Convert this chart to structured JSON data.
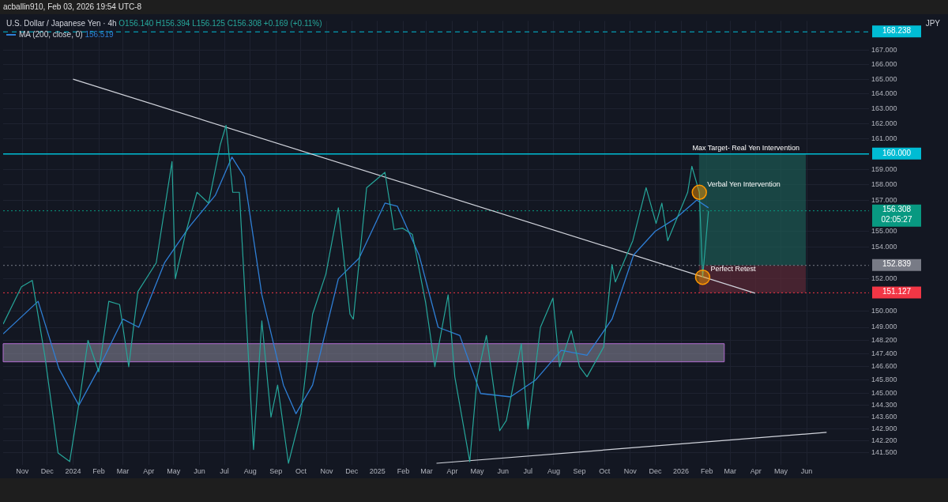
{
  "chart_data": {
    "type": "line",
    "title": "U.S. Dollar / Japanese Yen · 4h",
    "subtitle": "O156.140 H156.394 L156.125 C156.308 +0.169 (+0.11%)",
    "log": "y",
    "grid": true,
    "legend": "top left",
    "marker": "none",
    "xlim": [
      "2023-10-09",
      "2026-08-15"
    ],
    "xticks": [
      {
        "value": "2023-11-01",
        "label": "Nov"
      },
      {
        "value": "2023-12-01",
        "label": "Dec"
      },
      {
        "value": "2024-01-01",
        "label": "2024"
      },
      {
        "value": "2024-02-01",
        "label": "Feb"
      },
      {
        "value": "2024-03-01",
        "label": "Mar"
      },
      {
        "value": "2024-04-01",
        "label": "Apr"
      },
      {
        "value": "2024-05-01",
        "label": "May"
      },
      {
        "value": "2024-06-01",
        "label": "Jun"
      },
      {
        "value": "2024-07-01",
        "label": "Jul"
      },
      {
        "value": "2024-08-01",
        "label": "Aug"
      },
      {
        "value": "2024-09-01",
        "label": "Sep"
      },
      {
        "value": "2024-10-01",
        "label": "Oct"
      },
      {
        "value": "2024-11-01",
        "label": "Nov"
      },
      {
        "value": "2024-12-01",
        "label": "Dec"
      },
      {
        "value": "2025-01-01",
        "label": "2025"
      },
      {
        "value": "2025-02-01",
        "label": "Feb"
      },
      {
        "value": "2025-03-01",
        "label": "Mar"
      },
      {
        "value": "2025-04-01",
        "label": "Apr"
      },
      {
        "value": "2025-05-01",
        "label": "May"
      },
      {
        "value": "2025-06-01",
        "label": "Jun"
      },
      {
        "value": "2025-07-01",
        "label": "Jul"
      },
      {
        "value": "2025-08-01",
        "label": "Aug"
      },
      {
        "value": "2025-09-01",
        "label": "Sep"
      },
      {
        "value": "2025-10-01",
        "label": "Oct"
      },
      {
        "value": "2025-11-01",
        "label": "Nov"
      },
      {
        "value": "2025-12-01",
        "label": "Dec"
      },
      {
        "value": "2026-01-01",
        "label": "2026"
      },
      {
        "value": "2026-02-01",
        "label": "Feb"
      },
      {
        "value": "2026-03-01",
        "label": "Mar"
      },
      {
        "value": "2026-04-01",
        "label": "Apr"
      },
      {
        "value": "2026-05-01",
        "label": "May"
      },
      {
        "value": "2026-06-01",
        "label": "Jun"
      }
    ],
    "ylim": [
      140.8,
      169.0
    ],
    "yticks": [
      {
        "value": 141.5,
        "label": "141.500"
      },
      {
        "value": 142.2,
        "label": "142.200"
      },
      {
        "value": 142.9,
        "label": "142.900"
      },
      {
        "value": 143.6,
        "label": "143.600"
      },
      {
        "value": 144.3,
        "label": "144.300"
      },
      {
        "value": 145,
        "label": "145.000"
      },
      {
        "value": 145.8,
        "label": "145.800"
      },
      {
        "value": 146.6,
        "label": "146.600"
      },
      {
        "value": 147.4,
        "label": "147.400"
      },
      {
        "value": 148.2,
        "label": "148.200"
      },
      {
        "value": 149,
        "label": "149.000"
      },
      {
        "value": 150,
        "label": "150.000"
      },
      {
        "value": 152,
        "label": "152.000"
      },
      {
        "value": 154,
        "label": "154.000"
      },
      {
        "value": 155,
        "label": "155.000"
      },
      {
        "value": 157,
        "label": "157.000"
      },
      {
        "value": 158,
        "label": "158.000"
      },
      {
        "value": 159,
        "label": "159.000"
      },
      {
        "value": 161,
        "label": "161.000"
      },
      {
        "value": 162,
        "label": "162.000"
      },
      {
        "value": 163,
        "label": "163.000"
      },
      {
        "value": 164,
        "label": "164.000"
      },
      {
        "value": 165,
        "label": "165.000"
      },
      {
        "value": 166,
        "label": "166.000"
      },
      {
        "value": 167,
        "label": "167.000"
      }
    ],
    "series": [
      {
        "color": "#26a69a",
        "x": [
          "2023-10-09",
          "2023-10-31",
          "2023-11-13",
          "2023-11-28",
          "2023-12-14",
          "2023-12-28",
          "2024-01-10",
          "2024-01-19",
          "2024-02-01",
          "2024-02-13",
          "2024-02-26",
          "2024-03-08",
          "2024-03-19",
          "2024-04-10",
          "2024-04-29",
          "2024-05-03",
          "2024-05-15",
          "2024-05-29",
          "2024-06-12",
          "2024-06-26",
          "2024-07-03",
          "2024-07-11",
          "2024-07-19",
          "2024-08-05",
          "2024-08-15",
          "2024-08-26",
          "2024-09-03",
          "2024-09-16",
          "2024-10-01",
          "2024-10-15",
          "2024-10-31",
          "2024-11-15",
          "2024-11-29",
          "2024-12-03",
          "2024-12-19",
          "2025-01-10",
          "2025-01-21",
          "2025-01-31",
          "2025-02-12",
          "2025-02-28",
          "2025-03-11",
          "2025-03-27",
          "2025-04-04",
          "2025-04-22",
          "2025-05-01",
          "2025-05-12",
          "2025-05-28",
          "2025-06-05",
          "2025-06-23",
          "2025-07-01",
          "2025-07-16",
          "2025-07-31",
          "2025-08-08",
          "2025-08-22",
          "2025-09-01",
          "2025-09-10",
          "2025-09-30",
          "2025-10-10",
          "2025-10-14",
          "2025-11-04",
          "2025-11-20",
          "2025-12-02",
          "2025-12-09",
          "2025-12-16",
          "2026-01-09",
          "2026-01-14",
          "2026-01-23",
          "2026-01-27",
          "2026-02-03"
        ],
        "values": [
          149.2,
          151.5,
          151.9,
          147.3,
          141.5,
          141.0,
          145.0,
          148.2,
          146.3,
          150.6,
          150.4,
          146.6,
          151.2,
          153.0,
          159.5,
          152.0,
          154.8,
          157.5,
          156.8,
          160.6,
          161.9,
          157.5,
          157.5,
          141.7,
          149.4,
          143.6,
          145.5,
          140.9,
          143.8,
          149.8,
          152.3,
          156.5,
          149.8,
          149.5,
          157.8,
          158.8,
          155.1,
          155.2,
          154.8,
          150.5,
          146.6,
          151.0,
          146.0,
          141.0,
          146.0,
          148.5,
          142.8,
          143.4,
          148.0,
          142.9,
          149.0,
          150.8,
          146.6,
          148.8,
          146.6,
          146.0,
          147.8,
          152.9,
          151.8,
          154.4,
          157.8,
          155.5,
          156.8,
          154.4,
          157.5,
          159.2,
          157.5,
          152.1,
          156.3
        ]
      },
      {
        "name": "MA (200, close, 0)",
        "color": "#2f7fd6",
        "x": [
          "2023-10-09",
          "2023-11-20",
          "2023-12-15",
          "2024-01-08",
          "2024-02-01",
          "2024-03-01",
          "2024-03-20",
          "2024-04-20",
          "2024-05-20",
          "2024-06-20",
          "2024-07-10",
          "2024-07-25",
          "2024-08-15",
          "2024-09-10",
          "2024-09-25",
          "2024-10-15",
          "2024-11-15",
          "2024-12-10",
          "2025-01-10",
          "2025-01-25",
          "2025-02-20",
          "2025-03-15",
          "2025-04-10",
          "2025-05-05",
          "2025-06-10",
          "2025-07-10",
          "2025-08-10",
          "2025-09-10",
          "2025-10-10",
          "2025-11-05",
          "2025-12-01",
          "2025-12-25",
          "2026-01-20",
          "2026-02-03"
        ],
        "values": [
          148.6,
          150.6,
          146.5,
          144.3,
          146.5,
          149.5,
          149.0,
          153.0,
          155.3,
          157.3,
          159.8,
          158.5,
          151.0,
          145.5,
          143.8,
          145.5,
          152.0,
          153.3,
          156.8,
          156.6,
          153.5,
          149.0,
          148.5,
          145.0,
          144.8,
          145.8,
          147.6,
          147.3,
          149.5,
          153.5,
          155.0,
          155.8,
          157.0,
          156.5
        ]
      },
      {
        "color": "#d1d4dc",
        "x": [
          "2024-01-01",
          "2026-03-31"
        ],
        "values": [
          165.0,
          151.1
        ]
      },
      {
        "color": "#d1d4dc",
        "x": [
          "2025-03-13",
          "2026-06-25"
        ],
        "values": [
          140.9,
          142.7
        ]
      }
    ],
    "bands": [
      {
        "axis": "y",
        "from": 146.9,
        "to": 148.0,
        "color": "#8c8a9c"
      },
      {
        "axis": "y",
        "from": 152.839,
        "to": 160.0,
        "color": "#1d5a52"
      },
      {
        "axis": "y",
        "from": 151.127,
        "to": 152.839,
        "color": "#5c2a36"
      }
    ],
    "ref_lines": [
      {
        "axis": "y",
        "value": 168.238,
        "label": "168.238",
        "color": "#00bcd4",
        "line_style": "dashed"
      },
      {
        "axis": "y",
        "value": 160.0,
        "label": "160.000",
        "color": "#00bcd4",
        "line_style": "solid"
      },
      {
        "axis": "y",
        "value": 156.308,
        "label": "156.308\n02:05:27",
        "color": "#089981",
        "line_style": "dotted"
      },
      {
        "axis": "y",
        "value": 152.839,
        "label": "152.839",
        "color": "#787b86",
        "line_style": "dotted"
      },
      {
        "axis": "y",
        "value": 151.127,
        "label": "151.127",
        "color": "#f23645",
        "line_style": "dotted"
      }
    ],
    "annotations": [
      "acballin910, Feb 03, 2026 19:54 UTC-8",
      "156.519",
      "JPY",
      {
        "text": "Max Target- Real Yen Intervention",
        "x": "2026-03-20",
        "y": 160.0
      },
      {
        "text": "Verbal Yen Intervention",
        "x": "2026-01-23",
        "y": 157.5
      },
      {
        "text": "Perfect Retest",
        "x": "2026-01-27",
        "y": 152.1
      }
    ]
  }
}
